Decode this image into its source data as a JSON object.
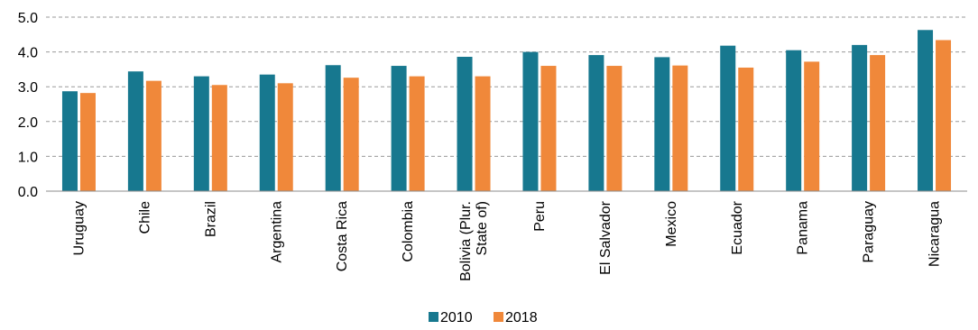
{
  "chart_data": {
    "type": "bar",
    "categories": [
      "Uruguay",
      "Chile",
      "Brazil",
      "Argentina",
      "Costa Rica",
      "Colombia",
      "Bolivia (Plur. State of)",
      "Peru",
      "El Salvador",
      "Mexico",
      "Ecuador",
      "Panama",
      "Paraguay",
      "Nicaragua"
    ],
    "category_lines": [
      [
        "Uruguay"
      ],
      [
        "Chile"
      ],
      [
        "Brazil"
      ],
      [
        "Argentina"
      ],
      [
        "Costa Rica"
      ],
      [
        "Colombia"
      ],
      [
        "Bolivia (Plur.",
        "State of)"
      ],
      [
        "Peru"
      ],
      [
        "El Salvador"
      ],
      [
        "Mexico"
      ],
      [
        "Ecuador"
      ],
      [
        "Panama"
      ],
      [
        "Paraguay"
      ],
      [
        "Nicaragua"
      ]
    ],
    "series": [
      {
        "name": "2010",
        "color": "#17788f",
        "values": [
          2.87,
          3.44,
          3.3,
          3.35,
          3.62,
          3.6,
          3.86,
          4.0,
          3.91,
          3.85,
          4.18,
          4.05,
          4.2,
          4.63
        ]
      },
      {
        "name": "2018",
        "color": "#f0883a",
        "values": [
          2.82,
          3.17,
          3.05,
          3.1,
          3.26,
          3.3,
          3.3,
          3.6,
          3.6,
          3.61,
          3.55,
          3.72,
          3.91,
          4.34
        ]
      }
    ],
    "ylim": [
      0,
      5
    ],
    "yticks": [
      "0.0",
      "1.0",
      "2.0",
      "3.0",
      "4.0",
      "5.0"
    ],
    "grid": true,
    "legend_position": "bottom-center"
  }
}
